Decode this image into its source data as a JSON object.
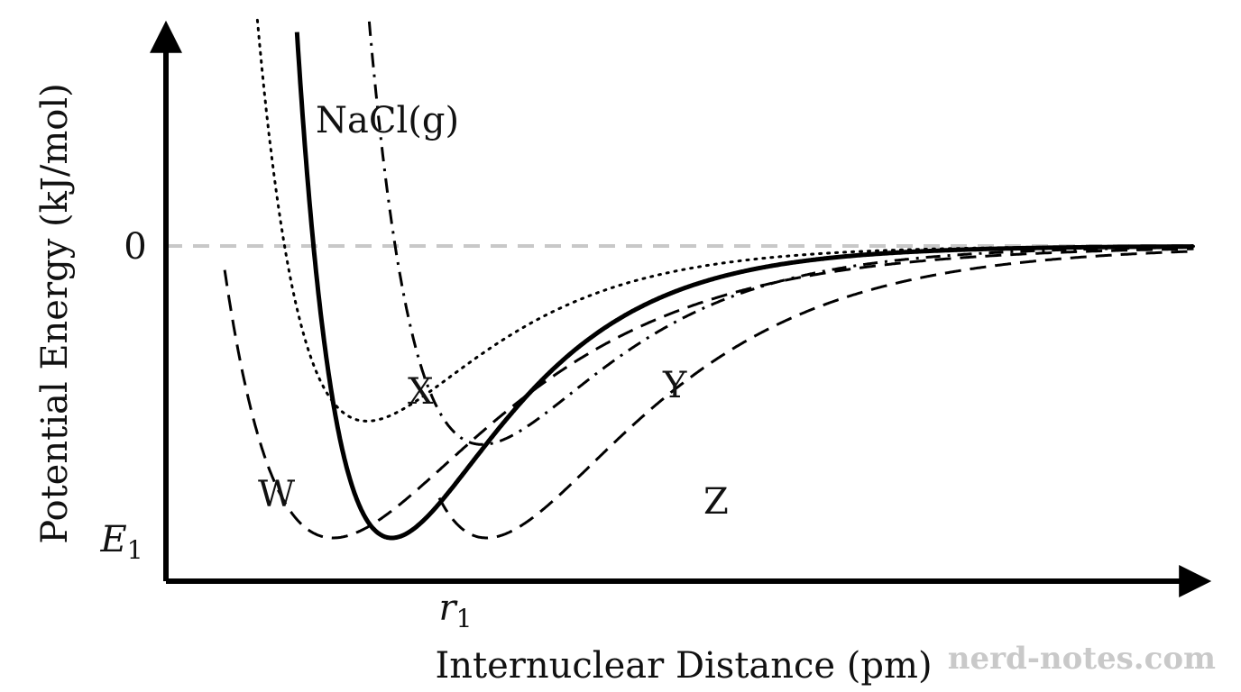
{
  "chart_data": {
    "type": "line",
    "xlabel": "Internuclear Distance (pm)",
    "ylabel": "Potential Energy (kJ/mol)",
    "y_ticks": [
      {
        "label": "0",
        "value": 0
      },
      {
        "label": "E",
        "sub": "1",
        "value": -1
      }
    ],
    "x_ticks": [
      {
        "label": "r",
        "sub": "1",
        "value": 1
      }
    ],
    "zero_line": {
      "y": 0,
      "style": "dashed",
      "color": "#c8c8c8"
    },
    "xlim": [
      0,
      4.6
    ],
    "ylim": [
      -1.12,
      0.8
    ],
    "series": [
      {
        "name": "NaCl(g)",
        "r0": 1.0,
        "depth": 1.0,
        "a": 2.0,
        "x_start": 0.54,
        "style": "solid",
        "width": 5
      },
      {
        "name": "X",
        "r0": 0.89,
        "depth": 0.6,
        "a": 1.9,
        "x_start": 0.33,
        "style": "dotted",
        "width": 3
      },
      {
        "name": "Y",
        "r0": 1.4,
        "depth": 0.68,
        "a": 1.8,
        "x_start": 0.85,
        "style": "dashdot",
        "width": 3
      },
      {
        "name": "W",
        "r0": 0.74,
        "depth": 1.0,
        "a": 1.4,
        "x_start": 0.26,
        "style": "dashed",
        "width": 3
      },
      {
        "name": "Z",
        "r0": 1.42,
        "depth": 1.0,
        "a": 1.5,
        "x_start": 1.21,
        "style": "dashed",
        "width": 3
      }
    ],
    "annotations": [
      "NaCl(g)",
      "X",
      "Y",
      "W",
      "Z"
    ]
  },
  "watermark": "nerd-notes.com"
}
